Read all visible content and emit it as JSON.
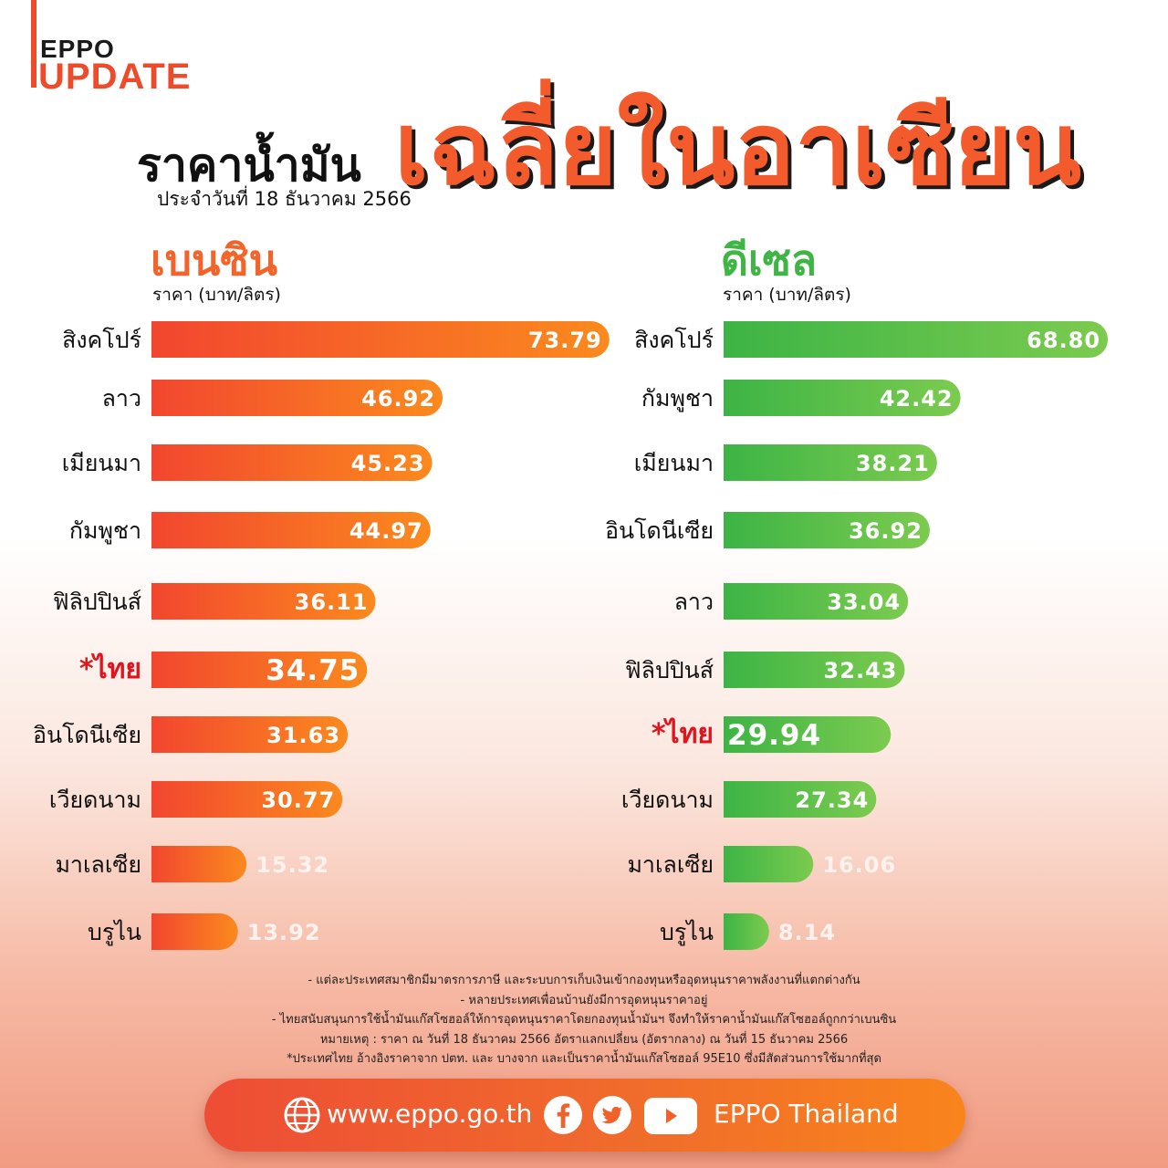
{
  "brand": {
    "line1": "EPPO",
    "line2": "UPDATE"
  },
  "header": {
    "title_left": "ราคาน้ำมัน",
    "subtitle": "ประจำวันที่ 18 ธันวาคม 2566",
    "title_big": "เฉลี่ยในอาเซียน"
  },
  "sections": {
    "petrol_title": "เบนซิน",
    "petrol_unit": "ราคา (บาท/ลิตร)",
    "diesel_title": "ดีเซล",
    "diesel_unit": "ราคา (บาท/ลิตร)"
  },
  "colors": {
    "petrol_start": "#f2462f",
    "petrol_end": "#fb8a1e",
    "diesel_start": "#3cb445",
    "diesel_end": "#7ccb4f",
    "highlight_label": "#e0141c"
  },
  "chart_data": [
    {
      "type": "bar",
      "orientation": "horizontal",
      "title": "เบนซิน",
      "xlabel": "ราคา (บาท/ลิตร)",
      "categories": [
        "สิงคโปร์",
        "ลาว",
        "เมียนมา",
        "กัมพูชา",
        "ฟิลิปปินส์",
        "*ไทย",
        "อินโดนีเซีย",
        "เวียดนาม",
        "มาเลเซีย",
        "บรูไน"
      ],
      "values": [
        73.79,
        46.92,
        45.23,
        44.97,
        36.11,
        34.75,
        31.63,
        30.77,
        15.32,
        13.92
      ],
      "value_labels": [
        "73.79",
        "46.92",
        "45.23",
        "44.97",
        "36.11",
        "34.75",
        "31.63",
        "30.77",
        "15.32",
        "13.92"
      ],
      "highlight": "*ไทย"
    },
    {
      "type": "bar",
      "orientation": "horizontal",
      "title": "ดีเซล",
      "xlabel": "ราคา (บาท/ลิตร)",
      "categories": [
        "สิงคโปร์",
        "กัมพูชา",
        "เมียนมา",
        "อินโดนีเซีย",
        "ลาว",
        "ฟิลิปปินส์",
        "*ไทย",
        "เวียดนาม",
        "มาเลเซีย",
        "บรูไน"
      ],
      "values": [
        68.8,
        42.42,
        38.21,
        36.92,
        33.04,
        32.43,
        29.94,
        27.34,
        16.06,
        8.14
      ],
      "value_labels": [
        "68.80",
        "42.42",
        "38.21",
        "36.92",
        "33.04",
        "32.43",
        "29.94",
        "27.34",
        "16.06",
        "8.14"
      ],
      "highlight": "*ไทย"
    }
  ],
  "notes": [
    "- แต่ละประเทศสมาชิกมีมาตรการภาษี และระบบการเก็บเงินเข้ากองทุนหรืออุดหนุนราคาพลังงานที่แตกต่างกัน",
    "- หลายประเทศเพื่อนบ้านยังมีการอุดหนุนราคาอยู่",
    "- ไทยสนับสนุนการใช้น้ำมันแก๊สโซฮอล์ให้การอุดหนุนราคาโดยกองทุนน้ำมันฯ จึงทำให้ราคาน้ำมันแก๊สโซฮอล์ถูกกว่าเบนซิน",
    "หมายเหตุ : ราคา ณ วันที่ 18 ธันวาคม 2566 อัตราแลกเปลี่ยน (อัตรากลาง) ณ วันที่ 15 ธันวาคม 2566",
    "*ประเทศไทย อ้างอิงราคาจาก ปตท. และ บางจาก และเป็นราคาน้ำมันแก๊สโซฮอล์ 95E10 ซึ่งมีสัดส่วนการใช้มากที่สุด"
  ],
  "footer": {
    "website": "www.eppo.go.th",
    "social_name": "EPPO Thailand",
    "icons": [
      "globe-icon",
      "facebook-icon",
      "twitter-icon",
      "youtube-icon"
    ]
  }
}
